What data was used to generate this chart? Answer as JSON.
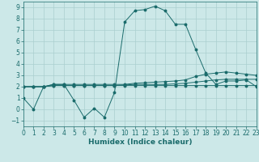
{
  "background_color": "#cce8e8",
  "grid_color": "#aacfcf",
  "line_color": "#1a6b6b",
  "series1_x": [
    0,
    1,
    2,
    3,
    4,
    5,
    6,
    7,
    8,
    9,
    10,
    11,
    12,
    13,
    14,
    15,
    16,
    17,
    18,
    19,
    20,
    21,
    22,
    23
  ],
  "series1_y": [
    1,
    0,
    2,
    2.2,
    2.2,
    0.8,
    -0.7,
    0.1,
    -0.7,
    1.5,
    7.7,
    8.7,
    8.8,
    9.1,
    8.7,
    7.5,
    7.5,
    5.3,
    3.2,
    2.2,
    2.5,
    2.5,
    2.6,
    2.0
  ],
  "series2_x": [
    0,
    1,
    2,
    3,
    4,
    5,
    6,
    7,
    8,
    9,
    10,
    11,
    12,
    13,
    14,
    15,
    16,
    17,
    18,
    19,
    20,
    21,
    22,
    23
  ],
  "series2_y": [
    2.0,
    2.0,
    2.0,
    2.1,
    2.1,
    2.1,
    2.1,
    2.1,
    2.1,
    2.1,
    2.1,
    2.1,
    2.1,
    2.1,
    2.1,
    2.1,
    2.1,
    2.1,
    2.1,
    2.1,
    2.1,
    2.1,
    2.1,
    2.1
  ],
  "series3_x": [
    0,
    1,
    2,
    3,
    4,
    5,
    6,
    7,
    8,
    9,
    10,
    11,
    12,
    13,
    14,
    15,
    16,
    17,
    18,
    19,
    20,
    21,
    22,
    23
  ],
  "series3_y": [
    2.0,
    2.0,
    2.0,
    2.1,
    2.1,
    2.1,
    2.1,
    2.1,
    2.1,
    2.1,
    2.15,
    2.2,
    2.2,
    2.2,
    2.2,
    2.25,
    2.3,
    2.4,
    2.5,
    2.6,
    2.65,
    2.65,
    2.65,
    2.65
  ],
  "series4_x": [
    0,
    1,
    2,
    3,
    4,
    5,
    6,
    7,
    8,
    9,
    10,
    11,
    12,
    13,
    14,
    15,
    16,
    17,
    18,
    19,
    20,
    21,
    22,
    23
  ],
  "series4_y": [
    2.0,
    2.0,
    2.0,
    2.2,
    2.2,
    2.2,
    2.2,
    2.2,
    2.2,
    2.2,
    2.2,
    2.3,
    2.35,
    2.4,
    2.45,
    2.5,
    2.6,
    2.9,
    3.1,
    3.2,
    3.3,
    3.2,
    3.1,
    3.0
  ],
  "xlim": [
    0,
    23
  ],
  "ylim": [
    -1.5,
    9.5
  ],
  "yticks": [
    -1,
    0,
    1,
    2,
    3,
    4,
    5,
    6,
    7,
    8,
    9
  ],
  "xticks": [
    0,
    1,
    2,
    3,
    4,
    5,
    6,
    7,
    8,
    9,
    10,
    11,
    12,
    13,
    14,
    15,
    16,
    17,
    18,
    19,
    20,
    21,
    22,
    23
  ],
  "xlabel": "Humidex (Indice chaleur)",
  "xlabel_fontsize": 6.5,
  "tick_fontsize": 5.5,
  "marker": "o",
  "markersize": 1.8,
  "linewidth": 0.7
}
